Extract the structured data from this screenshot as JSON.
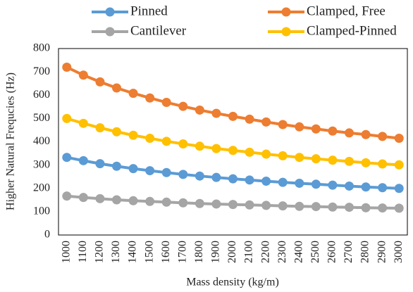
{
  "chart_data": {
    "type": "line",
    "xlabel": "Mass density  (kg/m)",
    "ylabel": "Higher Natural Frequcies (Hz)",
    "categories": [
      "1000",
      "1100",
      "1200",
      "1300",
      "1400",
      "1500",
      "1600",
      "1700",
      "1800",
      "1900",
      "2000",
      "2100",
      "2200",
      "2300",
      "2400",
      "2500",
      "2600",
      "2700",
      "2800",
      "2900",
      "3000"
    ],
    "series": [
      {
        "name": "Pinned",
        "color": "#5b9bd5",
        "values": [
          333,
          319,
          306,
          295,
          285,
          276,
          268,
          260,
          253,
          247,
          241,
          236,
          231,
          226,
          222,
          218,
          214,
          210,
          206,
          203,
          200
        ]
      },
      {
        "name": "Clamped, Free",
        "color": "#ed7d31",
        "values": [
          720,
          686,
          657,
          631,
          608,
          588,
          569,
          552,
          536,
          522,
          509,
          497,
          485,
          474,
          464,
          455,
          446,
          438,
          431,
          423,
          415
        ]
      },
      {
        "name": "Cantilever",
        "color": "#a5a5a5",
        "values": [
          167,
          161,
          156,
          151,
          147,
          144,
          141,
          138,
          135,
          133,
          131,
          129,
          127,
          125,
          123,
          122,
          120,
          119,
          117,
          116,
          115
        ]
      },
      {
        "name": "Clamped-Pinned",
        "color": "#ffc000",
        "values": [
          500,
          479,
          460,
          443,
          428,
          415,
          402,
          391,
          381,
          371,
          363,
          355,
          347,
          340,
          333,
          327,
          321,
          316,
          310,
          305,
          301
        ]
      }
    ],
    "ylim": [
      0,
      800
    ],
    "yticks": [
      0,
      100,
      200,
      300,
      400,
      500,
      600,
      700,
      800
    ],
    "grid": false
  }
}
